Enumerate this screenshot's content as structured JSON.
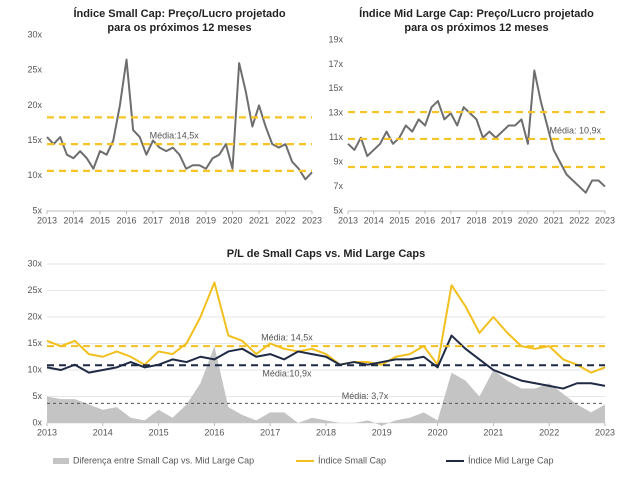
{
  "chart_data": [
    {
      "type": "line",
      "title": [
        "Índice Small Cap: Preço/Lucro projetado",
        "para os próximos 12 meses"
      ],
      "x": [
        2013,
        2013.25,
        2013.5,
        2013.75,
        2014,
        2014.25,
        2014.5,
        2014.75,
        2015,
        2015.25,
        2015.5,
        2015.75,
        2016,
        2016.25,
        2016.5,
        2016.75,
        2017,
        2017.25,
        2017.5,
        2017.75,
        2018,
        2018.25,
        2018.5,
        2018.75,
        2019,
        2019.25,
        2019.5,
        2019.75,
        2020,
        2020.25,
        2020.5,
        2020.75,
        2021,
        2021.25,
        2021.5,
        2021.75,
        2022,
        2022.25,
        2022.5,
        2022.75,
        2023
      ],
      "series": [
        {
          "color": "#6e6e6e",
          "values": [
            15.5,
            14.5,
            15.5,
            13,
            12.5,
            13.5,
            12.5,
            11,
            13.5,
            13,
            15,
            20,
            26.5,
            16.5,
            15.5,
            13,
            15,
            14,
            13.5,
            14,
            13,
            11,
            11.5,
            11.5,
            11,
            12.5,
            13,
            14.5,
            11,
            26,
            22,
            17,
            20,
            17,
            14.5,
            14,
            14.5,
            12,
            11,
            9.5,
            10.5
          ]
        }
      ],
      "reference_lines": [
        {
          "value": 18.3,
          "color": "#f7c325"
        },
        {
          "value": 14.5,
          "label": "Média:14,5x",
          "color": "#f7c325"
        },
        {
          "value": 10.7,
          "color": "#f7c325"
        }
      ],
      "xlim": [
        2013,
        2023
      ],
      "xticks": [
        2013,
        2014,
        2015,
        2016,
        2017,
        2018,
        2019,
        2020,
        2021,
        2022,
        2023
      ],
      "ylim": [
        5,
        30
      ],
      "yticks": [
        {
          "value": 5,
          "label": "5x"
        },
        {
          "value": 10,
          "label": "10x"
        },
        {
          "value": 15,
          "label": "15x"
        },
        {
          "value": 20,
          "label": "20x"
        },
        {
          "value": 25,
          "label": "25x"
        },
        {
          "value": 30,
          "label": "30x"
        }
      ],
      "grid": false
    },
    {
      "type": "line",
      "title": [
        "Índice Mid Large Cap: Preço/Lucro projetado",
        "para os próximos 12 meses"
      ],
      "x": [
        2013,
        2013.25,
        2013.5,
        2013.75,
        2014,
        2014.25,
        2014.5,
        2014.75,
        2015,
        2015.25,
        2015.5,
        2015.75,
        2016,
        2016.25,
        2016.5,
        2016.75,
        2017,
        2017.25,
        2017.5,
        2017.75,
        2018,
        2018.25,
        2018.5,
        2018.75,
        2019,
        2019.25,
        2019.5,
        2019.75,
        2020,
        2020.25,
        2020.5,
        2020.75,
        2021,
        2021.25,
        2021.5,
        2021.75,
        2022,
        2022.25,
        2022.5,
        2022.75,
        2023
      ],
      "series": [
        {
          "color": "#6e6e6e",
          "values": [
            10.5,
            10,
            11,
            9.5,
            10,
            10.5,
            11.5,
            10.5,
            11,
            12,
            11.5,
            12.5,
            12,
            13.5,
            14,
            12.5,
            13,
            12,
            13.5,
            13,
            12.5,
            11,
            11.5,
            11,
            11.5,
            12,
            12,
            12.5,
            10.5,
            16.5,
            14,
            12,
            10,
            9,
            8,
            7.5,
            7,
            6.5,
            7.5,
            7.5,
            7
          ]
        }
      ],
      "reference_lines": [
        {
          "value": 13.1,
          "color": "#f7c325"
        },
        {
          "value": 10.9,
          "label": "Média: 10,9x",
          "color": "#f7c325"
        },
        {
          "value": 8.6,
          "color": "#f7c325"
        }
      ],
      "xlim": [
        2013,
        2023
      ],
      "xticks": [
        2013,
        2014,
        2015,
        2016,
        2017,
        2018,
        2019,
        2020,
        2021,
        2022,
        2023
      ],
      "ylim": [
        5,
        19
      ],
      "yticks": [
        {
          "value": 5,
          "label": "5x"
        },
        {
          "value": 7,
          "label": "7x"
        },
        {
          "value": 9,
          "label": "9x"
        },
        {
          "value": 11,
          "label": "11x"
        },
        {
          "value": 13,
          "label": "13x"
        },
        {
          "value": 15,
          "label": "15x"
        },
        {
          "value": 17,
          "label": "17x"
        },
        {
          "value": 19,
          "label": "19x"
        }
      ],
      "grid": false
    },
    {
      "type": "line",
      "title": [
        "P/L de Small Caps vs. Mid Large Caps"
      ],
      "x": [
        2013,
        2013.25,
        2013.5,
        2013.75,
        2014,
        2014.25,
        2014.5,
        2014.75,
        2015,
        2015.25,
        2015.5,
        2015.75,
        2016,
        2016.25,
        2016.5,
        2016.75,
        2017,
        2017.25,
        2017.5,
        2017.75,
        2018,
        2018.25,
        2018.5,
        2018.75,
        2019,
        2019.25,
        2019.5,
        2019.75,
        2020,
        2020.25,
        2020.5,
        2020.75,
        2021,
        2021.25,
        2021.5,
        2021.75,
        2022,
        2022.25,
        2022.5,
        2022.75,
        2023
      ],
      "series": [
        {
          "name": "Diferença entre Small Cap vs. Mid Large Cap",
          "kind": "area",
          "color": "#c4c4c4",
          "values": [
            5,
            4.5,
            4.5,
            3.5,
            2.5,
            3,
            1,
            0.5,
            2.5,
            1,
            3.5,
            7.5,
            14.5,
            3,
            1.5,
            0.5,
            2,
            2,
            0,
            1,
            0.5,
            0,
            0,
            0.5,
            -0.5,
            0.5,
            1,
            2,
            0.5,
            9.5,
            8,
            5,
            10,
            8,
            6.5,
            6.5,
            7.5,
            5.5,
            3.5,
            2,
            3.5
          ]
        },
        {
          "name": "Índice Small Cap",
          "color": "#f2c01e",
          "values": [
            15.5,
            14.5,
            15.5,
            13,
            12.5,
            13.5,
            12.5,
            11,
            13.5,
            13,
            15,
            20,
            26.5,
            16.5,
            15.5,
            13,
            15,
            14,
            13.5,
            14,
            13,
            11,
            11.5,
            11.5,
            11,
            12.5,
            13,
            14.5,
            11,
            26,
            22,
            17,
            20,
            17,
            14.5,
            14,
            14.5,
            12,
            11,
            9.5,
            10.5
          ]
        },
        {
          "name": "Índice Mid Large Cap",
          "color": "#1f2a44",
          "values": [
            10.5,
            10,
            11,
            9.5,
            10,
            10.5,
            11.5,
            10.5,
            11,
            12,
            11.5,
            12.5,
            12,
            13.5,
            14,
            12.5,
            13,
            12,
            13.5,
            13,
            12.5,
            11,
            11.5,
            11,
            11.5,
            12,
            12,
            12.5,
            10.5,
            16.5,
            14,
            12,
            10,
            9,
            8,
            7.5,
            7,
            6.5,
            7.5,
            7.5,
            7
          ]
        }
      ],
      "reference_lines": [
        {
          "value": 14.5,
          "label": "Média: 14,5x",
          "color": "#f2c01e"
        },
        {
          "value": 10.9,
          "label": "Média:10,9x",
          "color": "#1f2a44"
        },
        {
          "value": 3.7,
          "label": "Média: 3,7x",
          "color": "#555555"
        }
      ],
      "xlim": [
        2013,
        2023
      ],
      "xticks": [
        2013,
        2014,
        2015,
        2016,
        2017,
        2018,
        2019,
        2020,
        2021,
        2022,
        2023
      ],
      "ylim": [
        0,
        30
      ],
      "yticks": [
        {
          "value": 0,
          "label": "0x"
        },
        {
          "value": 5,
          "label": "5x"
        },
        {
          "value": 10,
          "label": "10x"
        },
        {
          "value": 15,
          "label": "15x"
        },
        {
          "value": 20,
          "label": "20x"
        },
        {
          "value": 25,
          "label": "25x"
        },
        {
          "value": 30,
          "label": "30x"
        }
      ],
      "grid": true
    }
  ]
}
